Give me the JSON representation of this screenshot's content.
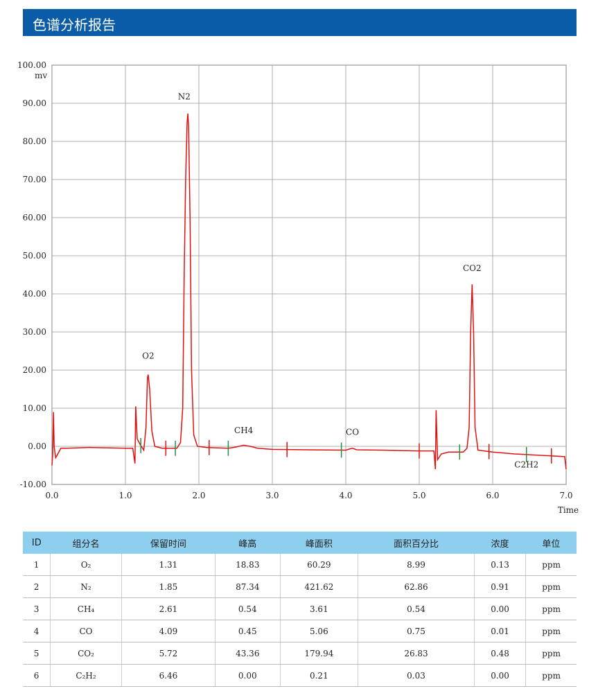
{
  "header": {
    "title": "色谱分析报告"
  },
  "chart_data": {
    "type": "line",
    "y_label": "mv",
    "x_label": "Time",
    "xlim": [
      0,
      7
    ],
    "ylim": [
      -10,
      100
    ],
    "xticks": [
      {
        "value": 0,
        "label": "0.0"
      },
      {
        "value": 1,
        "label": "1.0"
      },
      {
        "value": 2,
        "label": "2.0"
      },
      {
        "value": 3,
        "label": "3.0"
      },
      {
        "value": 4,
        "label": "4.0"
      },
      {
        "value": 5,
        "label": "5.0"
      },
      {
        "value": 6,
        "label": "6.0"
      },
      {
        "value": 7,
        "label": "7.0"
      }
    ],
    "yticks": [
      {
        "value": -10,
        "label": "-10.00"
      },
      {
        "value": 0,
        "label": "0.00"
      },
      {
        "value": 10,
        "label": "10.00"
      },
      {
        "value": 20,
        "label": "20.00"
      },
      {
        "value": 30,
        "label": "30.00"
      },
      {
        "value": 40,
        "label": "40.00"
      },
      {
        "value": 50,
        "label": "50.00"
      },
      {
        "value": 60,
        "label": "60.00"
      },
      {
        "value": 70,
        "label": "70.00"
      },
      {
        "value": 80,
        "label": "80.00"
      },
      {
        "value": 90,
        "label": "90.00"
      },
      {
        "value": 100,
        "label": "100.00"
      }
    ],
    "grid": true,
    "series": [
      {
        "color": "#e01010",
        "x": [
          0.0,
          0.01,
          0.02,
          0.03,
          0.05,
          0.08,
          0.12,
          0.2,
          0.5,
          0.8,
          1.0,
          1.1,
          1.13,
          1.14,
          1.16,
          1.2,
          1.25,
          1.28,
          1.3,
          1.31,
          1.33,
          1.36,
          1.4,
          1.5,
          1.7,
          1.75,
          1.78,
          1.8,
          1.82,
          1.84,
          1.85,
          1.86,
          1.88,
          1.9,
          1.93,
          1.98,
          2.1,
          2.4,
          2.5,
          2.61,
          2.7,
          2.8,
          3.0,
          3.5,
          4.0,
          4.05,
          4.09,
          4.15,
          4.5,
          5.0,
          5.2,
          5.22,
          5.23,
          5.25,
          5.3,
          5.4,
          5.6,
          5.65,
          5.68,
          5.7,
          5.72,
          5.74,
          5.76,
          5.8,
          6.0,
          6.3,
          6.5,
          6.8,
          6.98,
          7.0
        ],
        "values": [
          -5,
          -2,
          9,
          0,
          -3,
          -2,
          -0.5,
          -0.5,
          -0.3,
          -0.4,
          -0.5,
          -0.5,
          -4.5,
          10.5,
          2,
          0.5,
          -1,
          5,
          18,
          18.8,
          15,
          4,
          0,
          -0.5,
          -0.5,
          1,
          10,
          45,
          70,
          85,
          87.3,
          84,
          60,
          20,
          3,
          0,
          -0.3,
          -0.5,
          -0.2,
          0.3,
          0,
          -0.5,
          -0.8,
          -0.9,
          -1,
          -0.7,
          -0.5,
          -0.9,
          -1,
          -1.2,
          -1.2,
          -6,
          9.5,
          -3.5,
          -2,
          -1.5,
          -1.5,
          -0.5,
          5,
          30,
          42.5,
          30,
          5,
          -1,
          -1.5,
          -2,
          -2.2,
          -2.5,
          -2.7,
          -6
        ]
      }
    ],
    "markers": [
      {
        "x": 1.21,
        "color": "#2a8a40"
      },
      {
        "x": 1.55,
        "color": "#e01010"
      },
      {
        "x": 1.68,
        "color": "#2a8a40"
      },
      {
        "x": 2.14,
        "color": "#e01010"
      },
      {
        "x": 2.4,
        "color": "#2a8a40"
      },
      {
        "x": 3.2,
        "color": "#e01010"
      },
      {
        "x": 3.94,
        "color": "#2a8a40"
      },
      {
        "x": 5.0,
        "color": "#e01010"
      },
      {
        "x": 5.55,
        "color": "#2a8a40"
      },
      {
        "x": 5.95,
        "color": "#e01010"
      },
      {
        "x": 6.46,
        "color": "#2a8a40"
      },
      {
        "x": 6.8,
        "color": "#e01010"
      }
    ],
    "annotations": [
      {
        "text": "O2",
        "x": 1.31,
        "y": 23
      },
      {
        "text": "N2",
        "x": 1.8,
        "y": 91
      },
      {
        "text": "CH4",
        "x": 2.61,
        "y": 3.5
      },
      {
        "text": "CO",
        "x": 4.09,
        "y": 3
      },
      {
        "text": "CO2",
        "x": 5.72,
        "y": 46
      },
      {
        "text": "C2H2",
        "x": 6.46,
        "y": -5.5
      }
    ]
  },
  "table": {
    "columns": [
      "ID",
      "组分名",
      "保留时间",
      "峰高",
      "峰面积",
      "面积百分比",
      "浓度",
      "单位"
    ],
    "rows": [
      [
        "1",
        "O₂",
        "1.31",
        "18.83",
        "60.29",
        "8.99",
        "0.13",
        "ppm"
      ],
      [
        "2",
        "N₂",
        "1.85",
        "87.34",
        "421.62",
        "62.86",
        "0.91",
        "ppm"
      ],
      [
        "3",
        "CH₄",
        "2.61",
        "0.54",
        "3.61",
        "0.54",
        "0.00",
        "ppm"
      ],
      [
        "4",
        "CO",
        "4.09",
        "0.45",
        "5.06",
        "0.75",
        "0.01",
        "ppm"
      ],
      [
        "5",
        "CO₂",
        "5.72",
        "43.36",
        "179.94",
        "26.83",
        "0.48",
        "ppm"
      ],
      [
        "6",
        "C₂H₂",
        "6.46",
        "0.00",
        "0.21",
        "0.03",
        "0.00",
        "ppm"
      ]
    ]
  }
}
